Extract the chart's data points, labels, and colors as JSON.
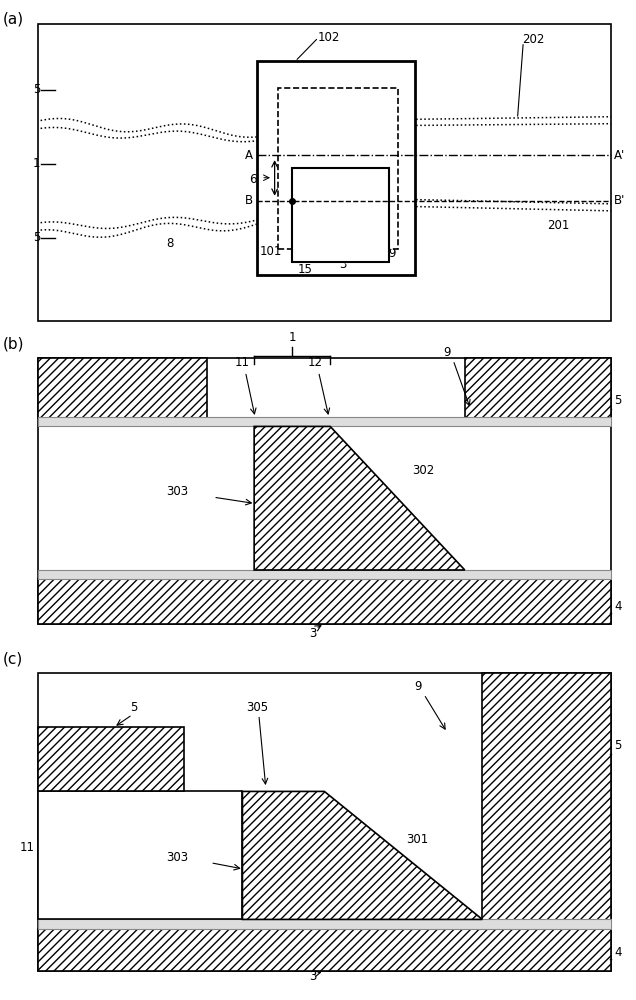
{
  "fig_width": 6.36,
  "fig_height": 10.0,
  "bg_color": "#ffffff",
  "line_color": "#000000",
  "panels": {
    "a": {
      "label": "(a)"
    },
    "b": {
      "label": "(b)"
    },
    "c": {
      "label": "(c)"
    }
  }
}
